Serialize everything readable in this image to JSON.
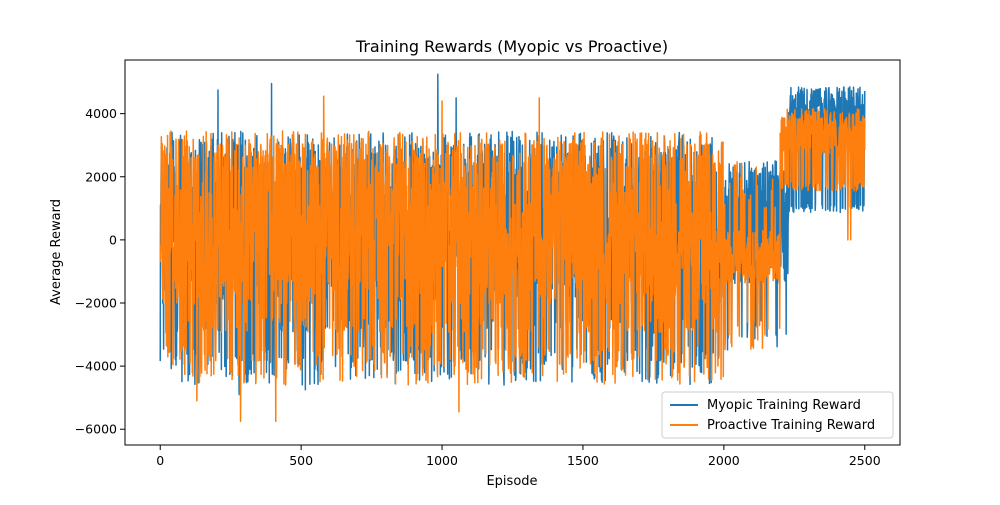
{
  "chart_data": {
    "type": "line",
    "title": "Training Rewards (Myopic vs Proactive)",
    "xlabel": "Episode",
    "ylabel": "Average Reward",
    "xlim": [
      -125,
      2625
    ],
    "ylim": [
      -6500,
      5700
    ],
    "xticks": [
      0,
      500,
      1000,
      1500,
      2000,
      2500
    ],
    "yticks": [
      -6000,
      -4000,
      -2000,
      0,
      2000,
      4000
    ],
    "xtick_labels": [
      "0",
      "500",
      "1000",
      "1500",
      "2000",
      "2500"
    ],
    "ytick_labels": [
      "−6000",
      "−4000",
      "−2000",
      "0",
      "2000",
      "4000"
    ],
    "grid": false,
    "legend_position": "lower-right",
    "colors": {
      "myopic": "#1f77b4",
      "proactive": "#ff7f0e"
    },
    "episodes": 2500,
    "series": [
      {
        "name": "Myopic Training Reward",
        "color": "#1f77b4",
        "phases": [
          {
            "from": 0,
            "to": 2230,
            "low": -4400,
            "high": 3200,
            "note": "high-variance oscillation"
          },
          {
            "from": 2000,
            "to": 2230,
            "low": -1400,
            "high": 2500,
            "note": "narrowing band"
          },
          {
            "from": 2230,
            "to": 2500,
            "low": 1000,
            "high": 4700,
            "note": "plateau"
          }
        ],
        "extremes": [
          {
            "x": 395,
            "y": 4950
          },
          {
            "x": 985,
            "y": 5250
          },
          {
            "x": 1050,
            "y": 4500
          },
          {
            "x": 205,
            "y": 4750
          },
          {
            "x": 2330,
            "y": 4750
          },
          {
            "x": 2470,
            "y": 4650
          },
          {
            "x": 280,
            "y": -4900
          },
          {
            "x": 515,
            "y": -4750
          },
          {
            "x": 1220,
            "y": -4600
          },
          {
            "x": 1540,
            "y": -4400
          },
          {
            "x": 2280,
            "y": 1000
          },
          {
            "x": 2350,
            "y": 1000
          },
          {
            "x": 2420,
            "y": 1000
          }
        ]
      },
      {
        "name": "Proactive Training Reward",
        "color": "#ff7f0e",
        "phases": [
          {
            "from": 0,
            "to": 2200,
            "low": -4000,
            "high": 3200,
            "note": "high-variance oscillation"
          },
          {
            "from": 2000,
            "to": 2200,
            "low": -1400,
            "high": 300,
            "note": "narrowing band"
          },
          {
            "from": 2200,
            "to": 2500,
            "low": 1700,
            "high": 4000,
            "note": "plateau"
          }
        ],
        "extremes": [
          {
            "x": 285,
            "y": -5750
          },
          {
            "x": 410,
            "y": -5750
          },
          {
            "x": 130,
            "y": -5100
          },
          {
            "x": 1060,
            "y": -5450
          },
          {
            "x": 580,
            "y": 4550
          },
          {
            "x": 1000,
            "y": 4400
          },
          {
            "x": 1345,
            "y": 4500
          },
          {
            "x": 2450,
            "y": 0
          },
          {
            "x": 2440,
            "y": 0
          }
        ]
      }
    ]
  }
}
